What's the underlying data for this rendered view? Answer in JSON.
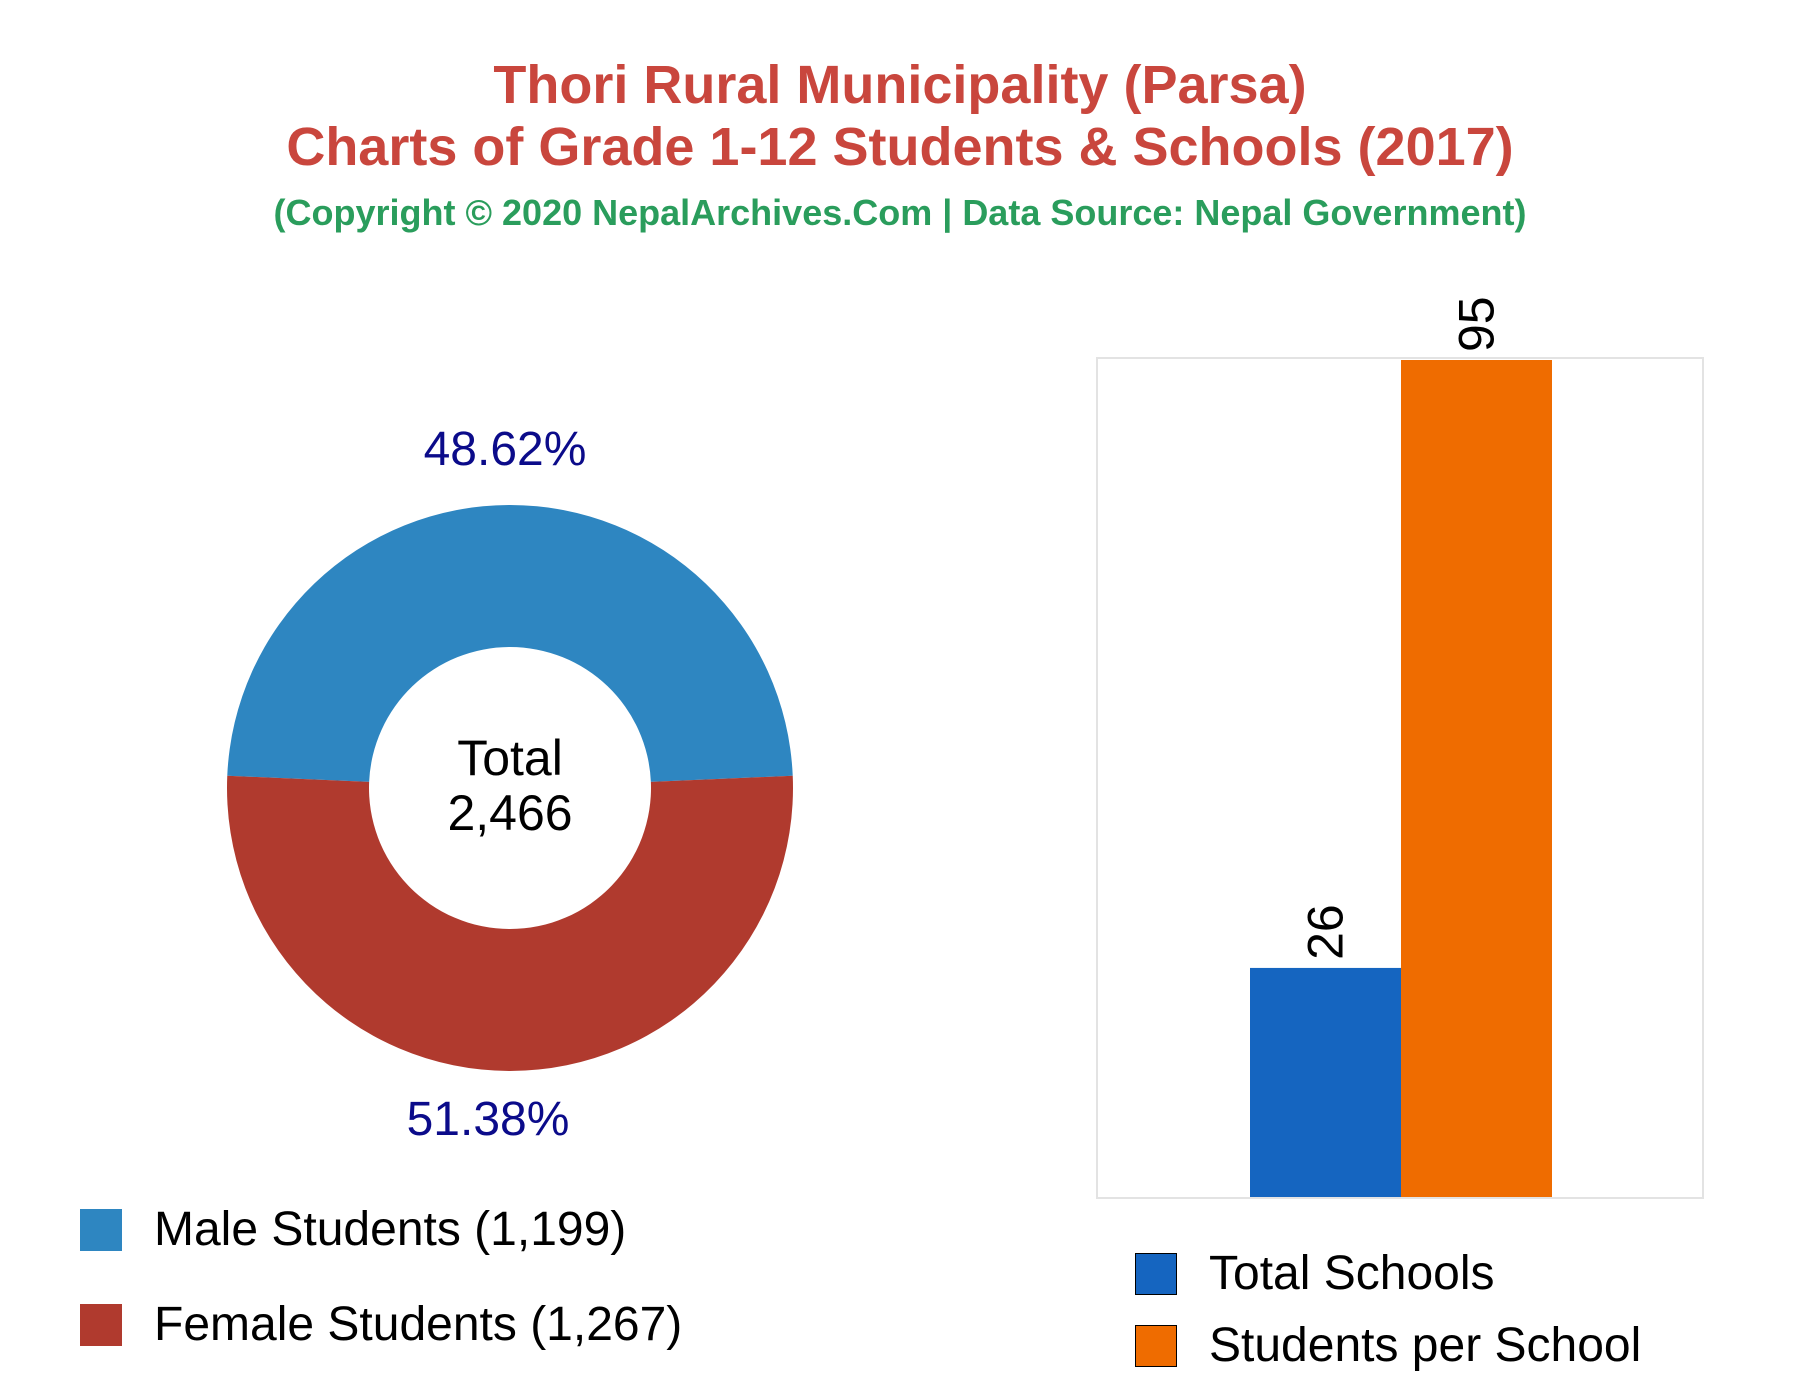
{
  "header": {
    "title_line1": "Thori Rural Municipality (Parsa)",
    "title_line2": "Charts of Grade 1-12 Students & Schools (2017)",
    "subtitle": "(Copyright © 2020 NepalArchives.Com | Data Source: Nepal Government)"
  },
  "chart_data": [
    {
      "type": "pie",
      "variant": "donut",
      "center_label": "Total",
      "center_value": "2,466",
      "slices": [
        {
          "label": "Male Students (1,199)",
          "value": 1199,
          "percent_label": "48.62%",
          "color": "#2e86c1"
        },
        {
          "label": "Female Students (1,267)",
          "value": 1267,
          "percent_label": "51.38%",
          "color": "#b03a2e"
        }
      ],
      "label_color": "#0b0b8a",
      "legend_position": "bottom-left"
    },
    {
      "type": "bar",
      "categories": [
        "Total Schools",
        "Students per School"
      ],
      "values": [
        26,
        95
      ],
      "value_labels": [
        "26",
        "95"
      ],
      "colors": [
        "#1565c0",
        "#ef6c00"
      ],
      "ylim": [
        0,
        95
      ],
      "grid": false,
      "legend_position": "bottom"
    }
  ]
}
